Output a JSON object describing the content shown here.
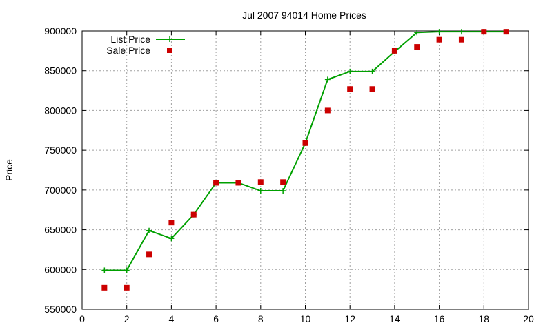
{
  "chart_data": {
    "type": "line",
    "title": "Jul 2007 94014 Home Prices",
    "xlabel": "",
    "ylabel": "Price",
    "xlim": [
      0,
      20
    ],
    "ylim": [
      550000,
      900000
    ],
    "x_ticks": [
      0,
      2,
      4,
      6,
      8,
      10,
      12,
      14,
      16,
      18,
      20
    ],
    "y_ticks": [
      550000,
      600000,
      650000,
      700000,
      750000,
      800000,
      850000,
      900000
    ],
    "x_tick_labels": [
      "0",
      "2",
      "4",
      "6",
      "8",
      "10",
      "12",
      "14",
      "16",
      "18",
      "20"
    ],
    "y_tick_labels": [
      "550000",
      "600000",
      "650000",
      "700000",
      "750000",
      "800000",
      "850000",
      "900000"
    ],
    "grid": true,
    "legend_position": "top-left",
    "series": [
      {
        "name": "List Price",
        "style": "line-with-plus-markers",
        "color": "#00a000",
        "x": [
          1,
          2,
          3,
          4,
          5,
          6,
          7,
          8,
          9,
          10,
          11,
          12,
          13,
          14,
          15,
          16,
          17,
          18,
          19
        ],
        "values": [
          599000,
          599000,
          649000,
          639000,
          669000,
          709000,
          709000,
          699000,
          699000,
          759000,
          839000,
          849000,
          849000,
          874000,
          898000,
          899000,
          899000,
          899000,
          899000
        ]
      },
      {
        "name": "Sale Price",
        "style": "square-markers",
        "color": "#cc0000",
        "x": [
          1,
          2,
          3,
          4,
          5,
          6,
          7,
          8,
          9,
          10,
          11,
          12,
          13,
          14,
          15,
          16,
          17,
          18,
          19
        ],
        "values": [
          577000,
          577000,
          619000,
          659000,
          669000,
          709000,
          709000,
          710000,
          710000,
          759000,
          800000,
          827000,
          827000,
          875000,
          880000,
          889000,
          889000,
          899000,
          899000
        ]
      }
    ]
  }
}
